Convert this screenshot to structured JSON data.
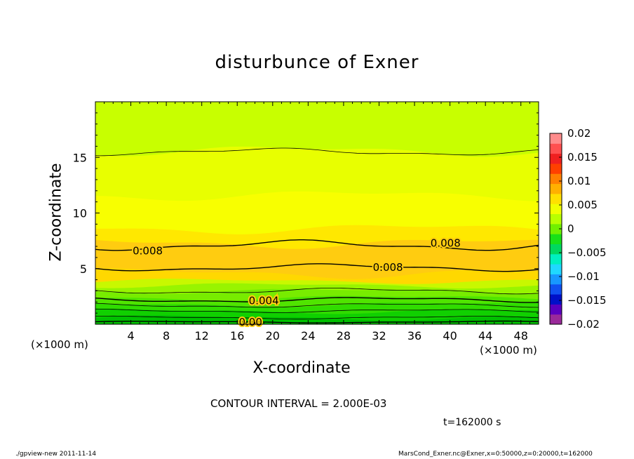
{
  "chart_data": {
    "type": "heatmap",
    "title": "disturbunce of Exner",
    "xlabel": "X-coordinate",
    "ylabel": "Z-coordinate",
    "x_unit": "(×1000 m)",
    "xlim": [
      0,
      50
    ],
    "ylim": [
      0,
      20
    ],
    "x_ticks": [
      4,
      8,
      12,
      16,
      20,
      24,
      28,
      32,
      36,
      40,
      44,
      48
    ],
    "y_ticks": [
      5,
      10,
      15
    ],
    "colorbar": {
      "ticks": [
        "0.02",
        "0.015",
        "0.01",
        "0.005",
        "0",
        "−0.005",
        "−0.01",
        "−0.015",
        "−0.02"
      ],
      "range": [
        -0.02,
        0.02
      ],
      "colors": [
        "#9a2a9a",
        "#5a00c0",
        "#0010c8",
        "#1050f0",
        "#1898ff",
        "#20d8ff",
        "#00f0c0",
        "#00d860",
        "#18e018",
        "#70f000",
        "#b8ff00",
        "#f0ff00",
        "#ffe000",
        "#ffb000",
        "#ff8000",
        "#ff4000",
        "#f02020",
        "#ff5050",
        "#ff8c8c"
      ]
    },
    "contour_labels": [
      {
        "text": "0.008",
        "x": 5.9,
        "z": 6.6
      },
      {
        "text": "0.008",
        "x": 39.5,
        "z": 7.3
      },
      {
        "text": "0.008",
        "x": 33.0,
        "z": 5.1
      },
      {
        "text": "0.004",
        "x": 19.0,
        "z": 2.1
      },
      {
        "text": "0.00",
        "x": 17.5,
        "z": 0.2
      }
    ],
    "contour_interval_text": "CONTOUR INTERVAL = 2.000E-03",
    "time_text": "t=162000 s"
  },
  "footer": {
    "left": "./gpview-new  2011-11-14",
    "right": "MarsCond_Exner.nc@Exner,x=0:50000,z=0:20000,t=162000"
  }
}
